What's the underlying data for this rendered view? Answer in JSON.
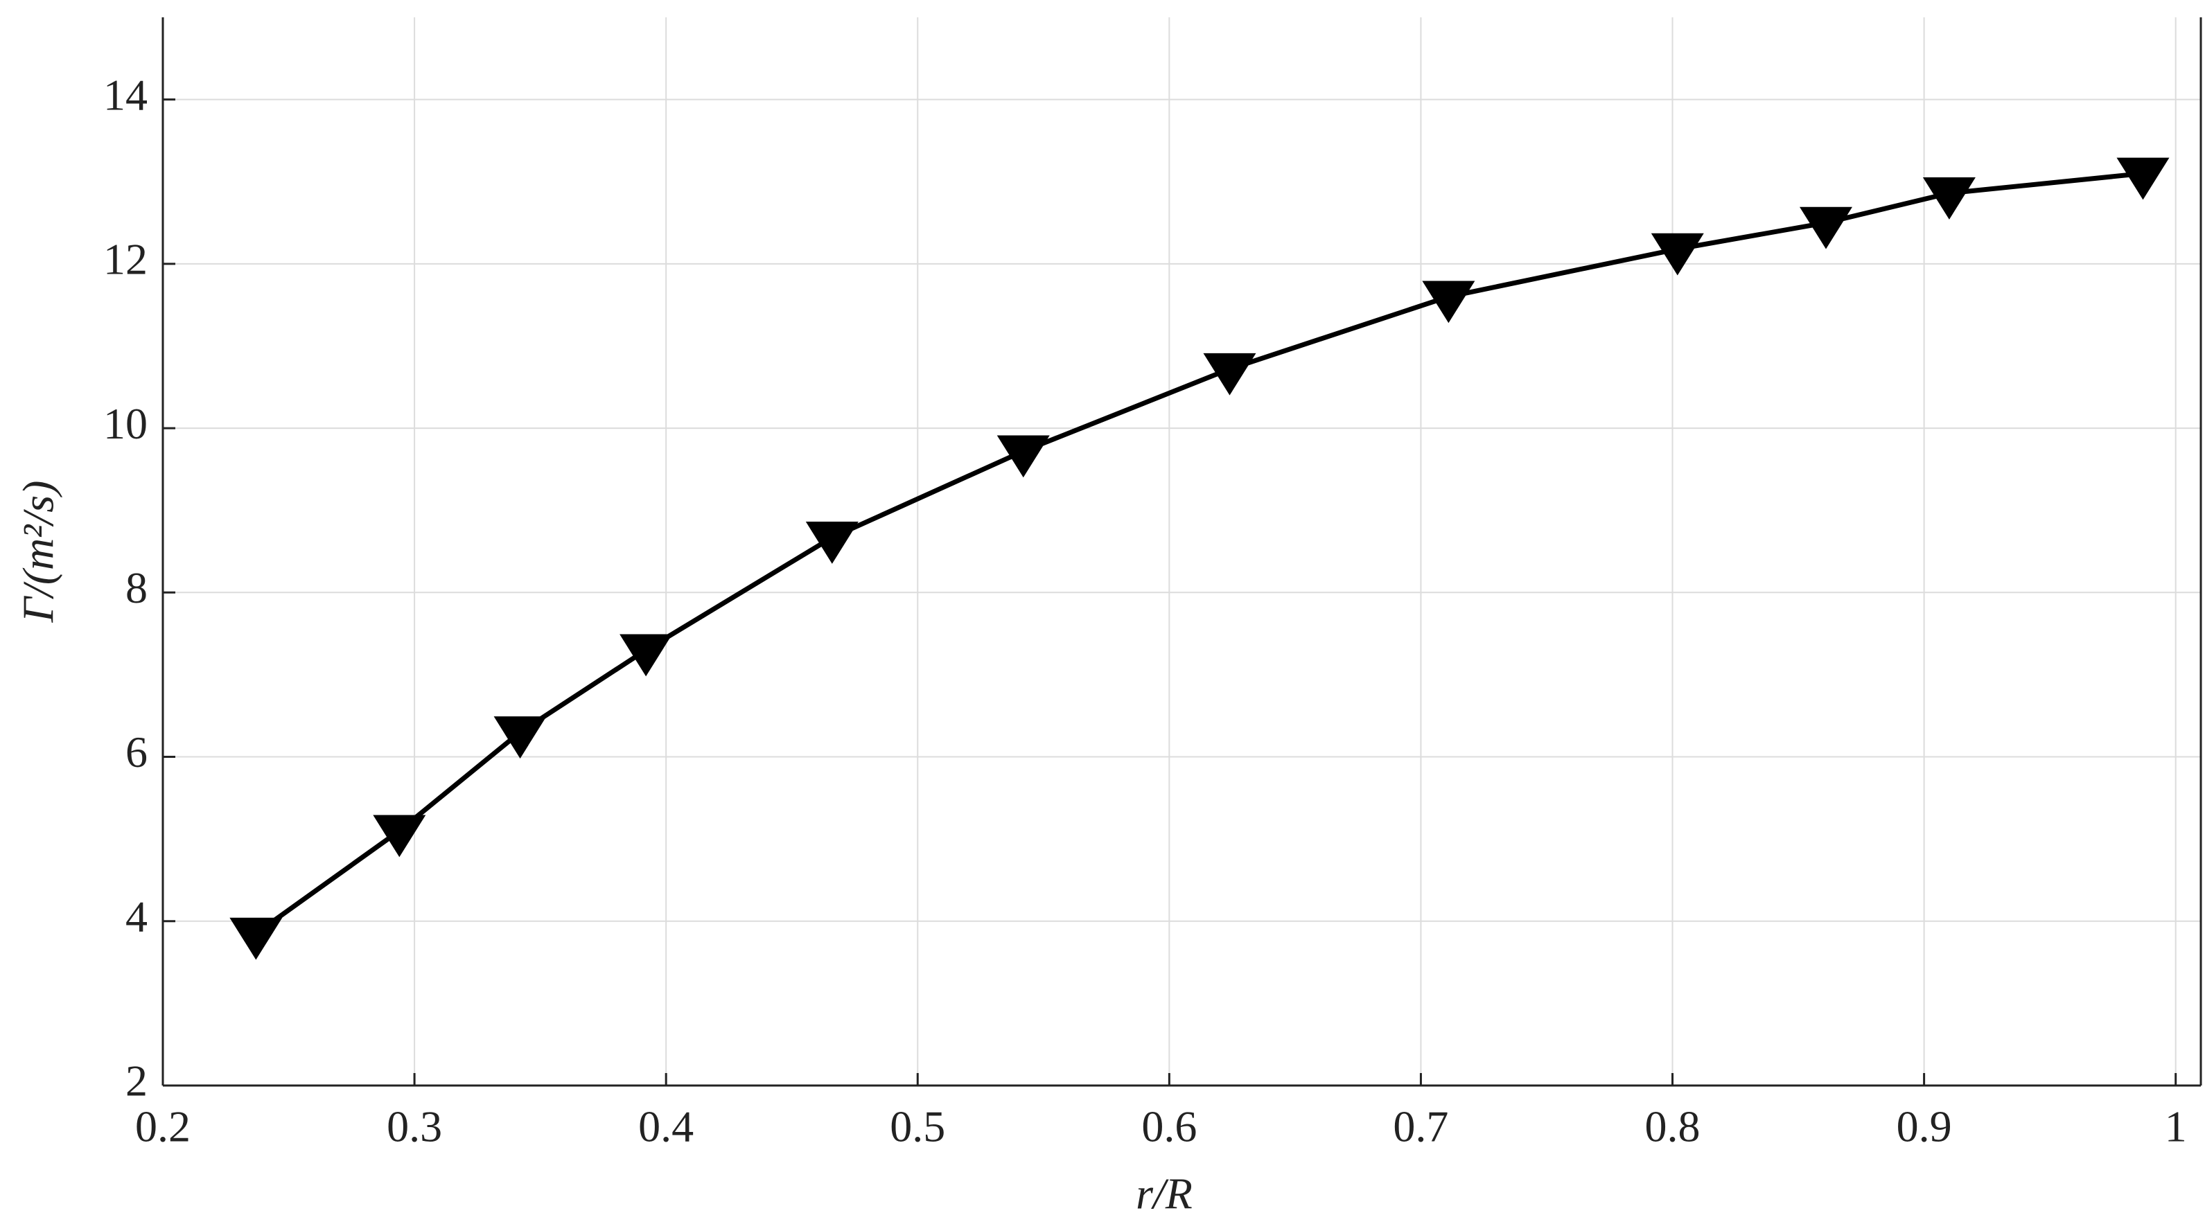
{
  "chart_data": {
    "type": "line",
    "x_label": "r/R",
    "y_label": "Γ/(m²/s)",
    "x": [
      0.237,
      0.294,
      0.342,
      0.392,
      0.466,
      0.542,
      0.624,
      0.711,
      0.802,
      0.861,
      0.91,
      0.987
    ],
    "series": [
      {
        "color": "#000000",
        "marker": "triangle-down",
        "values": [
          3.85,
          5.1,
          6.3,
          7.3,
          8.67,
          9.72,
          10.72,
          11.6,
          12.18,
          12.5,
          12.86,
          13.1
        ]
      }
    ],
    "xlim": [
      0.2,
      1.01
    ],
    "xticks": [
      0.2,
      0.3,
      0.4,
      0.5,
      0.6,
      0.7,
      0.8,
      0.9,
      1
    ],
    "ylim": [
      2,
      15
    ],
    "yticks": [
      2,
      4,
      6,
      8,
      10,
      12,
      14
    ],
    "grid": true
  }
}
